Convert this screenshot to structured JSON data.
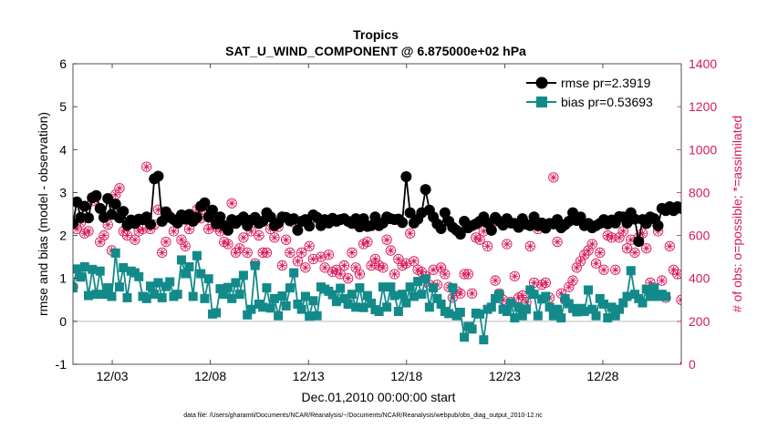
{
  "chart_data": {
    "type": "line",
    "title": "Tropics",
    "subtitle": "SAT_U_WIND_COMPONENT @ 6.875000e+02 hPa",
    "xlabel": "Dec.01,2010 00:00:00 start",
    "ylabel_left": "rmse and bias (model - observation)",
    "ylabel_right": "# of obs: o=possible; *=assimilated",
    "ylim_left": [
      -1,
      6
    ],
    "ylim_right": [
      0,
      1400
    ],
    "left_ticks": [
      "-1",
      "0",
      "1",
      "2",
      "3",
      "4",
      "5",
      "6"
    ],
    "right_ticks": [
      "0",
      "200",
      "400",
      "600",
      "800",
      "1000",
      "1200",
      "1400"
    ],
    "x_ticks": [
      "12/03",
      "12/08",
      "12/13",
      "12/18",
      "12/23",
      "12/28"
    ],
    "x_tick_days": [
      3,
      8,
      13,
      18,
      23,
      28
    ],
    "xlim": [
      1,
      32
    ],
    "footnote": "data file: /Users/gharamti/Documents/NCAR/Reanalysis/~/Documents/NCAR/Reanalysis/webpub/obs_diag_output_2010-12.nc",
    "colors": {
      "rmse": "#000000",
      "bias": "#138a8a",
      "obs": "#d6195c",
      "zero_line": "#c8c8c8"
    },
    "series": [
      {
        "name": "rmse pr=2.3919",
        "values": [
          2.28,
          2.78,
          2.42,
          2.68,
          2.41,
          2.88,
          2.93,
          2.63,
          2.42,
          2.86,
          2.49,
          2.73,
          2.41,
          2.56,
          2.24,
          2.36,
          2.28,
          2.38,
          2.37,
          2.43,
          2.26,
          3.32,
          3.38,
          2.33,
          2.55,
          2.42,
          2.37,
          2.29,
          2.48,
          2.38,
          2.49,
          2.33,
          2.42,
          2.68,
          2.76,
          2.43,
          2.59,
          2.27,
          2.43,
          2.23,
          2.12,
          2.37,
          2.28,
          2.36,
          2.43,
          2.23,
          2.36,
          2.42,
          2.28,
          2.33,
          2.53,
          2.43,
          2.23,
          2.29,
          2.43,
          2.42,
          2.34,
          2.39,
          2.12,
          2.33,
          2.37,
          2.22,
          2.48,
          2.42,
          2.23,
          2.37,
          2.29,
          2.4,
          2.33,
          2.37,
          2.39,
          2.33,
          2.28,
          2.39,
          2.2,
          2.39,
          2.21,
          2.23,
          2.43,
          2.23,
          2.29,
          2.43,
          2.39,
          2.37,
          2.38,
          2.3,
          3.37,
          2.53,
          2.29,
          2.38,
          2.53,
          3.07,
          2.59,
          2.43,
          2.27,
          2.16,
          2.53,
          2.33,
          2.19,
          2.12,
          2.03,
          2.33,
          2.18,
          2.23,
          2.27,
          2.33,
          2.43,
          2.29,
          2.12,
          2.42,
          2.33,
          2.24,
          2.39,
          2.29,
          2.28,
          2.19,
          2.39,
          2.26,
          2.23,
          2.43,
          2.23,
          2.29,
          2.17,
          2.28,
          2.27,
          2.37,
          2.18,
          2.25,
          2.33,
          2.53,
          2.35,
          2.43,
          2.23,
          2.28,
          2.18,
          2.23,
          2.28,
          2.37,
          2.27,
          2.36,
          2.29,
          2.44,
          2.43,
          2.29,
          2.53,
          2.38,
          1.86,
          2.37,
          2.28,
          2.43,
          2.39,
          2.23,
          2.63,
          2.58,
          2.67,
          2.58,
          2.67,
          2.63
        ]
      },
      {
        "name": "bias pr=0.53693",
        "values": [
          0.78,
          1.22,
          1.03,
          1.27,
          0.6,
          1.21,
          0.63,
          1.17,
          0.63,
          0.78,
          0.58,
          1.59,
          0.8,
          1.25,
          0.55,
          1.17,
          1.13,
          1.04,
          0.58,
          0.53,
          0.82,
          0.63,
          0.9,
          0.55,
          0.81,
          0.92,
          0.58,
          0.63,
          1.43,
          1.11,
          1.27,
          0.58,
          1.53,
          1.11,
          0.53,
          0.99,
          0.17,
          0.2,
          0.76,
          0.63,
          0.79,
          0.53,
          0.9,
          0.63,
          1.07,
          0.15,
          0.28,
          1.3,
          0.4,
          0.33,
          0.78,
          0.31,
          0.53,
          0.13,
          0.59,
          0.36,
          0.78,
          1.13,
          0.4,
          0.28,
          0.58,
          0.12,
          0.48,
          0.13,
          0.8,
          0.75,
          0.7,
          0.62,
          0.46,
          0.77,
          0.53,
          0.4,
          0.63,
          0.33,
          0.78,
          0.32,
          0.6,
          0.42,
          0.27,
          0.23,
          0.8,
          0.33,
          0.8,
          0.6,
          0.23,
          0.63,
          0.43,
          0.8,
          0.58,
          0.93,
          0.63,
          0.99,
          0.33,
          0.78,
          0.53,
          0.4,
          0.23,
          0.18,
          0.78,
          0.13,
          0.21,
          -0.37,
          -0.12,
          -0.18,
          0.19,
          0.17,
          -0.43,
          0.28,
          0.33,
          0.53,
          0.63,
          0.28,
          0.23,
          0.43,
          0.08,
          0.33,
          0.13,
          0.28,
          0.73,
          0.63,
          0.13,
          0.52,
          0.58,
          0.33,
          0.13,
          0.28,
          0.08,
          0.53,
          0.41,
          0.3,
          0.22,
          0.3,
          0.23,
          0.73,
          0.28,
          0.13,
          0.53,
          0.4,
          0.08,
          0.33,
          0.13,
          0.28,
          0.43,
          0.58,
          1.18,
          0.63,
          0.53,
          0.43,
          0.75,
          0.58,
          0.78,
          0.58,
          0.63,
          0.58
        ]
      },
      {
        "name": "obs possible",
        "values": [
          360,
          630,
          660,
          610,
          620,
          760,
          780,
          570,
          600,
          650,
          530,
          790,
          820,
          620,
          600,
          670,
          580,
          620,
          630,
          920,
          630,
          650,
          720,
          520,
          570,
          690,
          620,
          660,
          580,
          550,
          630,
          690,
          720,
          680,
          720,
          630,
          650,
          640,
          620,
          570,
          560,
          750,
          520,
          540,
          590,
          520,
          620,
          470,
          600,
          520,
          520,
          630,
          590,
          640,
          460,
          580,
          520,
          660,
          480,
          520,
          450,
          550,
          490,
          680,
          500,
          450,
          510,
          430,
          440,
          420,
          460,
          400,
          520,
          450,
          420,
          560,
          570,
          460,
          490,
          460,
          450,
          580,
          530,
          420,
          490,
          460,
          470,
          610,
          480,
          440,
          430,
          410,
          370,
          440,
          370,
          450,
          420,
          360,
          310,
          340,
          330,
          420,
          420,
          330,
          590,
          580,
          620,
          550,
          630,
          390,
          330,
          300,
          560,
          290,
          410,
          310,
          320,
          290,
          550,
          380,
          630,
          370,
          380,
          310,
          870,
          570,
          330,
          300,
          360,
          390,
          450,
          480,
          510,
          530,
          560,
          470,
          520,
          440,
          600,
          590,
          440,
          590,
          620,
          540,
          580,
          520,
          590,
          610,
          540,
          380,
          330,
          620,
          390,
          310,
          550,
          440,
          420,
          300,
          0
        ]
      },
      {
        "name": "obs assimilated",
        "values": [
          360,
          630,
          660,
          610,
          620,
          760,
          780,
          570,
          600,
          650,
          530,
          790,
          820,
          620,
          600,
          670,
          580,
          620,
          630,
          920,
          630,
          650,
          720,
          520,
          570,
          690,
          620,
          660,
          580,
          550,
          630,
          690,
          720,
          680,
          720,
          630,
          650,
          640,
          620,
          570,
          560,
          750,
          520,
          540,
          590,
          520,
          620,
          470,
          600,
          520,
          520,
          630,
          590,
          640,
          460,
          580,
          520,
          660,
          480,
          520,
          450,
          550,
          490,
          680,
          500,
          450,
          510,
          430,
          440,
          420,
          460,
          400,
          520,
          450,
          420,
          560,
          570,
          460,
          490,
          460,
          450,
          580,
          530,
          420,
          490,
          460,
          470,
          610,
          480,
          440,
          430,
          410,
          370,
          440,
          370,
          450,
          420,
          360,
          310,
          340,
          330,
          420,
          420,
          330,
          590,
          580,
          620,
          550,
          630,
          390,
          330,
          300,
          560,
          290,
          410,
          310,
          320,
          290,
          550,
          380,
          630,
          370,
          380,
          310,
          870,
          570,
          330,
          300,
          360,
          390,
          450,
          480,
          510,
          530,
          560,
          470,
          520,
          440,
          600,
          590,
          440,
          590,
          620,
          540,
          580,
          520,
          590,
          610,
          540,
          380,
          330,
          620,
          390,
          310,
          550,
          440,
          420,
          300,
          0
        ]
      }
    ]
  }
}
